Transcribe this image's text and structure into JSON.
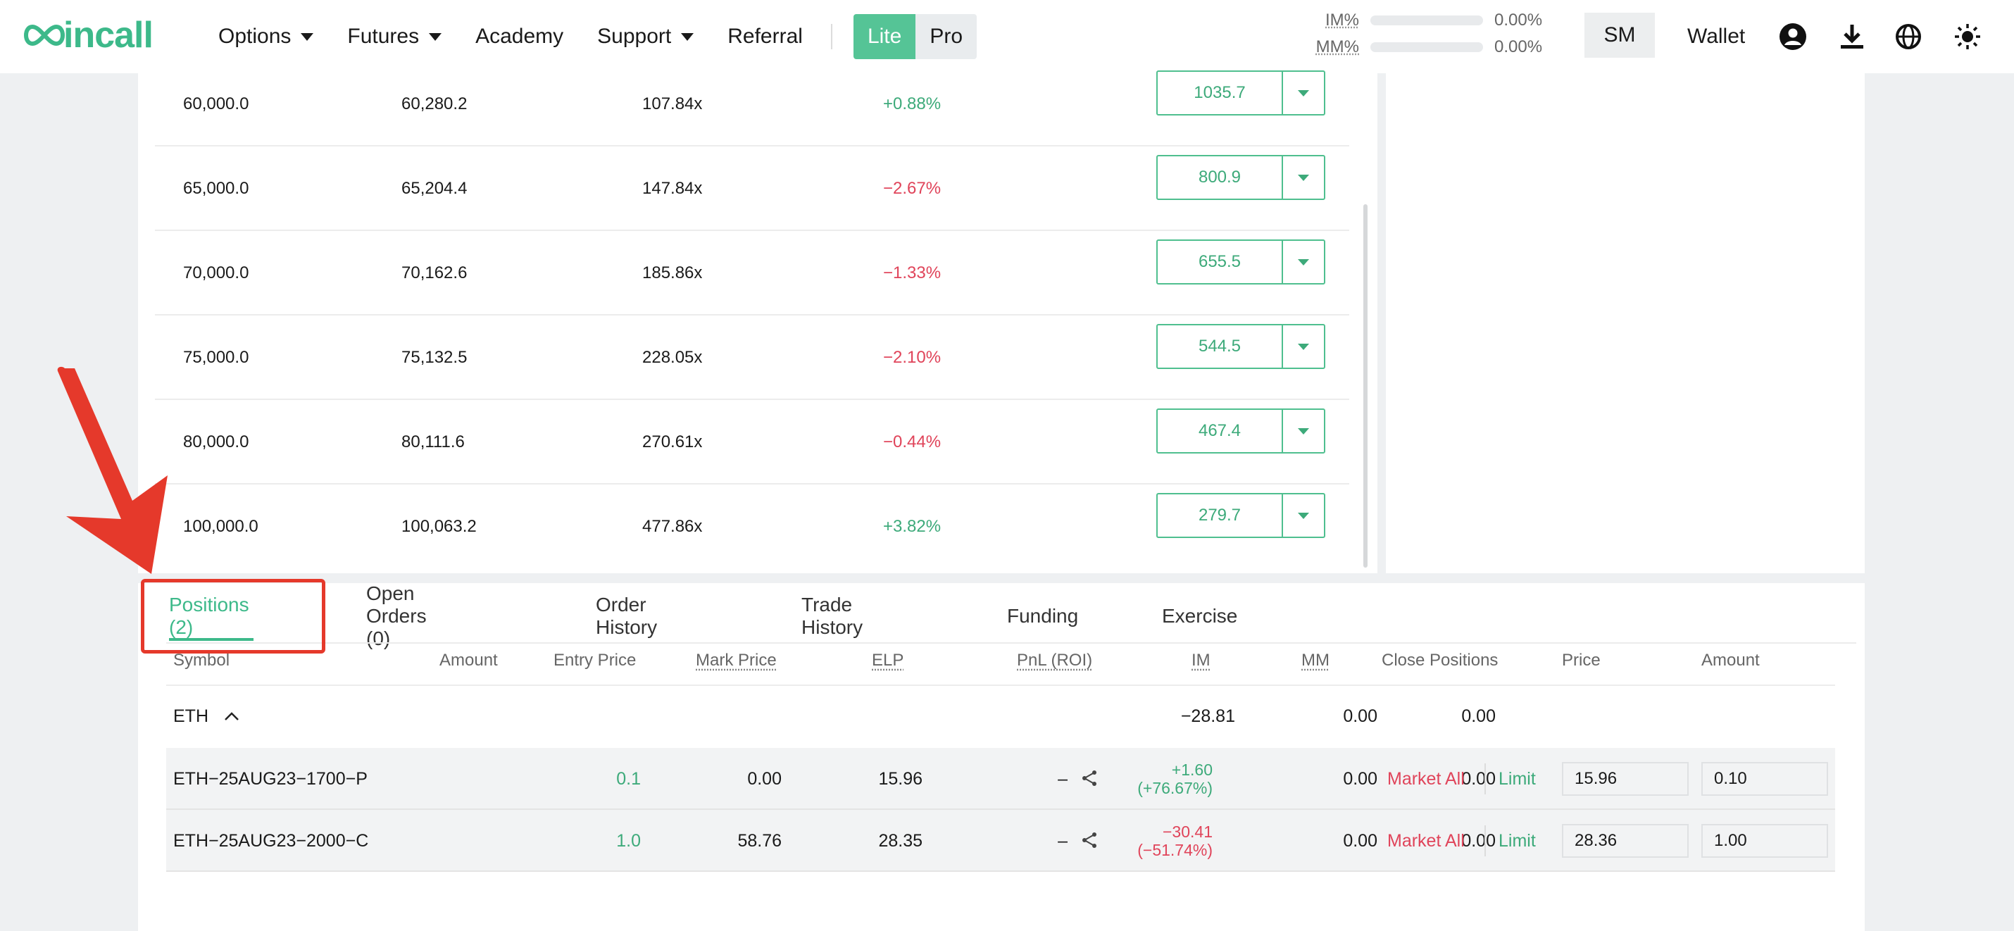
{
  "header": {
    "logo": "coincall",
    "nav": [
      {
        "label": "Options",
        "dropdown": true
      },
      {
        "label": "Futures",
        "dropdown": true
      },
      {
        "label": "Academy",
        "dropdown": false
      },
      {
        "label": "Support",
        "dropdown": true
      },
      {
        "label": "Referral",
        "dropdown": false
      }
    ],
    "mode": {
      "lite": "Lite",
      "pro": "Pro",
      "selected": "Lite"
    },
    "im_label": "IM%",
    "im_value": "0.00%",
    "mm_label": "MM%",
    "mm_value": "0.00%",
    "sm_label": "SM",
    "wallet_label": "Wallet",
    "icons": [
      "account-icon",
      "download-icon",
      "globe-icon",
      "theme-sun-icon"
    ]
  },
  "strikes": [
    {
      "strike": "60,000.0",
      "price": "60,280.2",
      "leverage": "107.84x",
      "change": "+0.88%",
      "dir": "up",
      "buy": "1035.7"
    },
    {
      "strike": "65,000.0",
      "price": "65,204.4",
      "leverage": "147.84x",
      "change": "−2.67%",
      "dir": "down",
      "buy": "800.9"
    },
    {
      "strike": "70,000.0",
      "price": "70,162.6",
      "leverage": "185.86x",
      "change": "−1.33%",
      "dir": "down",
      "buy": "655.5"
    },
    {
      "strike": "75,000.0",
      "price": "75,132.5",
      "leverage": "228.05x",
      "change": "−2.10%",
      "dir": "down",
      "buy": "544.5"
    },
    {
      "strike": "80,000.0",
      "price": "80,111.6",
      "leverage": "270.61x",
      "change": "−0.44%",
      "dir": "down",
      "buy": "467.4"
    },
    {
      "strike": "100,000.0",
      "price": "100,063.2",
      "leverage": "477.86x",
      "change": "+3.82%",
      "dir": "up",
      "buy": "279.7"
    }
  ],
  "tabs": [
    "Positions (2)",
    "Open Orders (0)",
    "Order History",
    "Trade History",
    "Funding",
    "Exercise"
  ],
  "active_tab": "Positions (2)",
  "columns": [
    "Symbol",
    "Amount",
    "Entry Price",
    "Mark Price",
    "ELP",
    "PnL (ROI)",
    "IM",
    "MM",
    "Close Positions",
    "Price",
    "Amount"
  ],
  "group": {
    "symbol": "ETH",
    "pnl": "−28.81",
    "im": "0.00",
    "mm": "0.00"
  },
  "positions": [
    {
      "symbol": "ETH−25AUG23−1700−P",
      "amount": "0.1",
      "entry": "0.00",
      "mark": "15.96",
      "elp": "–",
      "pnl": "+1.60",
      "roi": "(+76.67%)",
      "pnl_dir": "up",
      "im": "0.00",
      "mm": "0.00",
      "market_all": "Market All",
      "limit": "Limit",
      "price_input": "15.96",
      "amount_input": "0.10"
    },
    {
      "symbol": "ETH−25AUG23−2000−C",
      "amount": "1.0",
      "entry": "58.76",
      "mark": "28.35",
      "elp": "–",
      "pnl": "−30.41",
      "roi": "(−51.74%)",
      "pnl_dir": "down",
      "im": "0.00",
      "mm": "0.00",
      "market_all": "Market All",
      "limit": "Limit",
      "price_input": "28.36",
      "amount_input": "1.00"
    }
  ],
  "colors": {
    "brand": "#3db98a",
    "positive": "#3daa7a",
    "negative": "#e0445a",
    "annotation": "#e5392b"
  }
}
